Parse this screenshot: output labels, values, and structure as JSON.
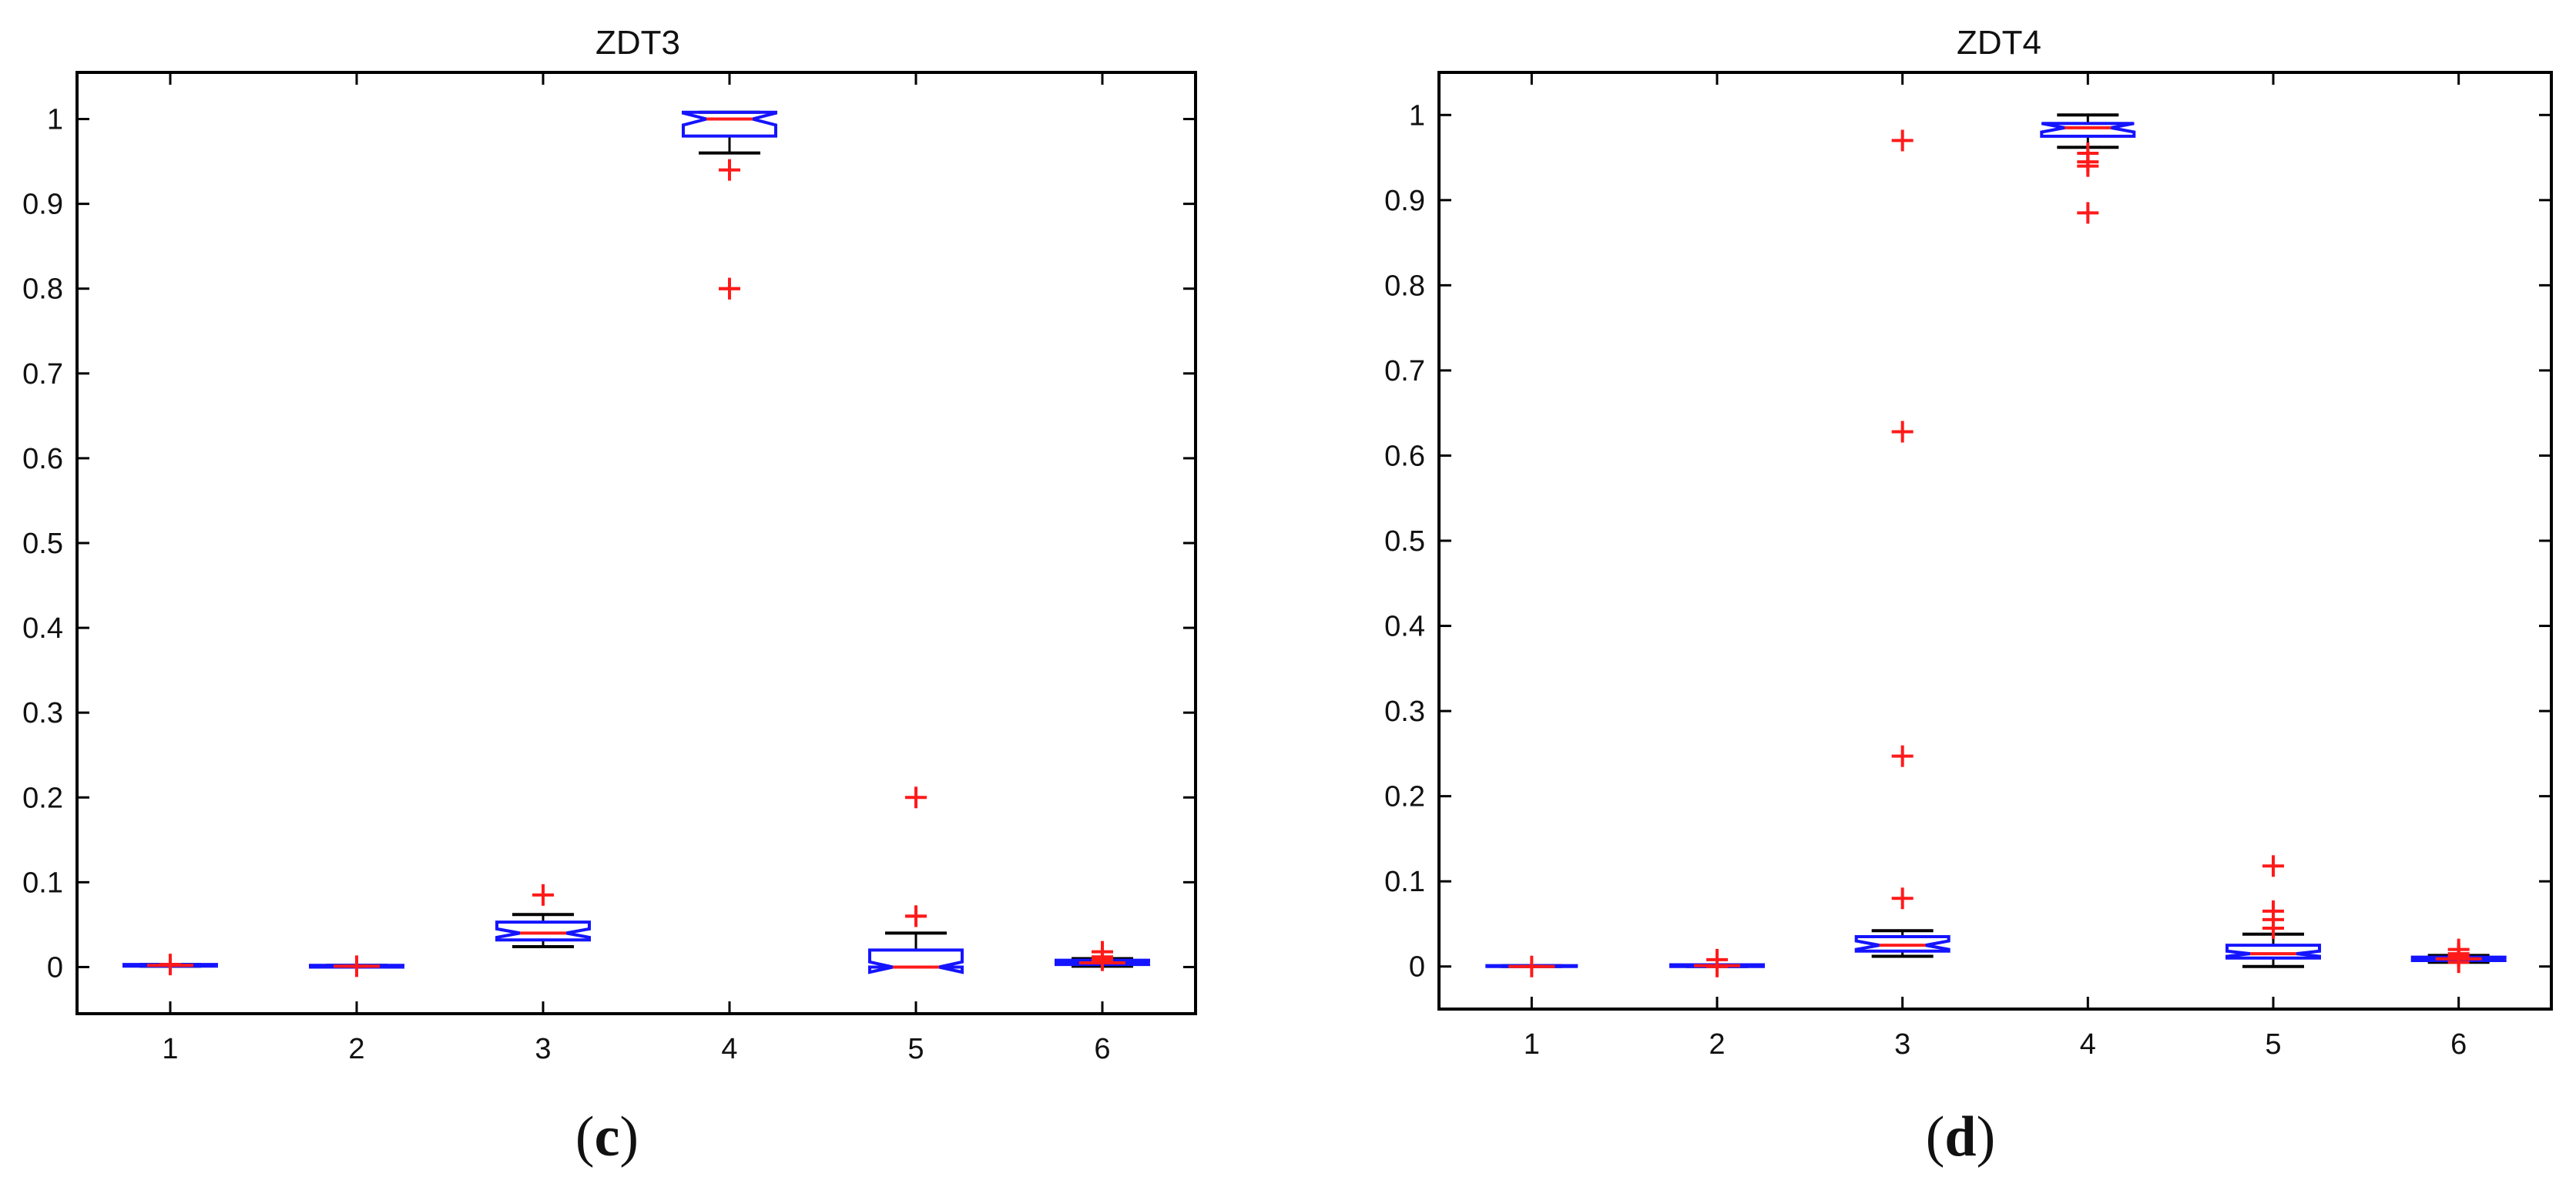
{
  "chart_data": [
    {
      "type": "box",
      "title": "ZDT3",
      "caption_letter": "c",
      "categories": [
        "1",
        "2",
        "3",
        "4",
        "5",
        "6"
      ],
      "yticks": [
        "0",
        "0.1",
        "0.2",
        "0.3",
        "0.4",
        "0.5",
        "0.6",
        "0.7",
        "0.8",
        "0.9",
        "1"
      ],
      "ylim": [
        -0.055,
        1.055
      ],
      "xlim": [
        0.5,
        6.5
      ],
      "grid": false,
      "boxes": [
        {
          "category": "1",
          "q1": 0.001,
          "median": 0.002,
          "q3": 0.003,
          "whisker_low": 0.001,
          "whisker_high": 0.003,
          "notch_low": 0.0015,
          "notch_high": 0.0025,
          "outliers": [
            0.003
          ]
        },
        {
          "category": "2",
          "q1": 0.0,
          "median": 0.001,
          "q3": 0.002,
          "whisker_low": 0.0,
          "whisker_high": 0.002,
          "notch_low": 0.0005,
          "notch_high": 0.0015,
          "outliers": [
            0.001
          ]
        },
        {
          "category": "3",
          "q1": 0.032,
          "median": 0.04,
          "q3": 0.053,
          "whisker_low": 0.024,
          "whisker_high": 0.062,
          "notch_low": 0.035,
          "notch_high": 0.045,
          "outliers": [
            0.085
          ]
        },
        {
          "category": "4",
          "q1": 0.98,
          "median": 1.0,
          "q3": 1.008,
          "whisker_low": 0.96,
          "whisker_high": 1.008,
          "notch_low": 0.993,
          "notch_high": 1.007,
          "outliers": [
            0.94,
            0.8,
            0.8
          ]
        },
        {
          "category": "5",
          "q1": 0.0,
          "median": 0.0,
          "q3": 0.02,
          "whisker_low": 0.0,
          "whisker_high": 0.04,
          "notch_low": -0.006,
          "notch_high": 0.006,
          "outliers": [
            0.06,
            0.06,
            0.2
          ]
        },
        {
          "category": "6",
          "q1": 0.003,
          "median": 0.005,
          "q3": 0.008,
          "whisker_low": 0.001,
          "whisker_high": 0.01,
          "notch_low": 0.004,
          "notch_high": 0.006,
          "outliers": [
            0.01,
            0.012,
            0.018,
            0.008
          ]
        }
      ]
    },
    {
      "type": "box",
      "title": "ZDT4",
      "caption_letter": "d",
      "categories": [
        "1",
        "2",
        "3",
        "4",
        "5",
        "6"
      ],
      "yticks": [
        "0",
        "0.1",
        "0.2",
        "0.3",
        "0.4",
        "0.5",
        "0.6",
        "0.7",
        "0.8",
        "0.9",
        "1"
      ],
      "ylim": [
        -0.05,
        1.05
      ],
      "xlim": [
        0.5,
        6.5
      ],
      "grid": false,
      "boxes": [
        {
          "category": "1",
          "q1": 0.0,
          "median": 0.0,
          "q3": 0.001,
          "whisker_low": 0.0,
          "whisker_high": 0.001,
          "notch_low": 0.0,
          "notch_high": 0.001,
          "outliers": [
            0.0
          ]
        },
        {
          "category": "2",
          "q1": 0.0,
          "median": 0.001,
          "q3": 0.002,
          "whisker_low": 0.0,
          "whisker_high": 0.002,
          "notch_low": 0.0005,
          "notch_high": 0.0015,
          "outliers": [
            0.0,
            0.008
          ]
        },
        {
          "category": "3",
          "q1": 0.018,
          "median": 0.025,
          "q3": 0.035,
          "whisker_low": 0.012,
          "whisker_high": 0.042,
          "notch_low": 0.02,
          "notch_high": 0.03,
          "outliers": [
            0.08,
            0.247,
            0.628,
            0.97
          ]
        },
        {
          "category": "4",
          "q1": 0.975,
          "median": 0.985,
          "q3": 0.99,
          "whisker_low": 0.962,
          "whisker_high": 1.0,
          "notch_low": 0.98,
          "notch_high": 0.99,
          "outliers": [
            0.955,
            0.945,
            0.94,
            0.885
          ]
        },
        {
          "category": "5",
          "q1": 0.01,
          "median": 0.015,
          "q3": 0.025,
          "whisker_low": 0.0,
          "whisker_high": 0.038,
          "notch_low": 0.012,
          "notch_high": 0.018,
          "outliers": [
            0.045,
            0.055,
            0.065,
            0.118
          ]
        },
        {
          "category": "6",
          "q1": 0.007,
          "median": 0.009,
          "q3": 0.011,
          "whisker_low": 0.005,
          "whisker_high": 0.013,
          "notch_low": 0.008,
          "notch_high": 0.01,
          "outliers": [
            0.005,
            0.012,
            0.015,
            0.02
          ]
        }
      ]
    }
  ],
  "colors": {
    "box": "#1414ff",
    "median": "#ff1a1a",
    "outlier": "#ff1a1a",
    "whisker": "#000000",
    "axis": "#000000"
  }
}
